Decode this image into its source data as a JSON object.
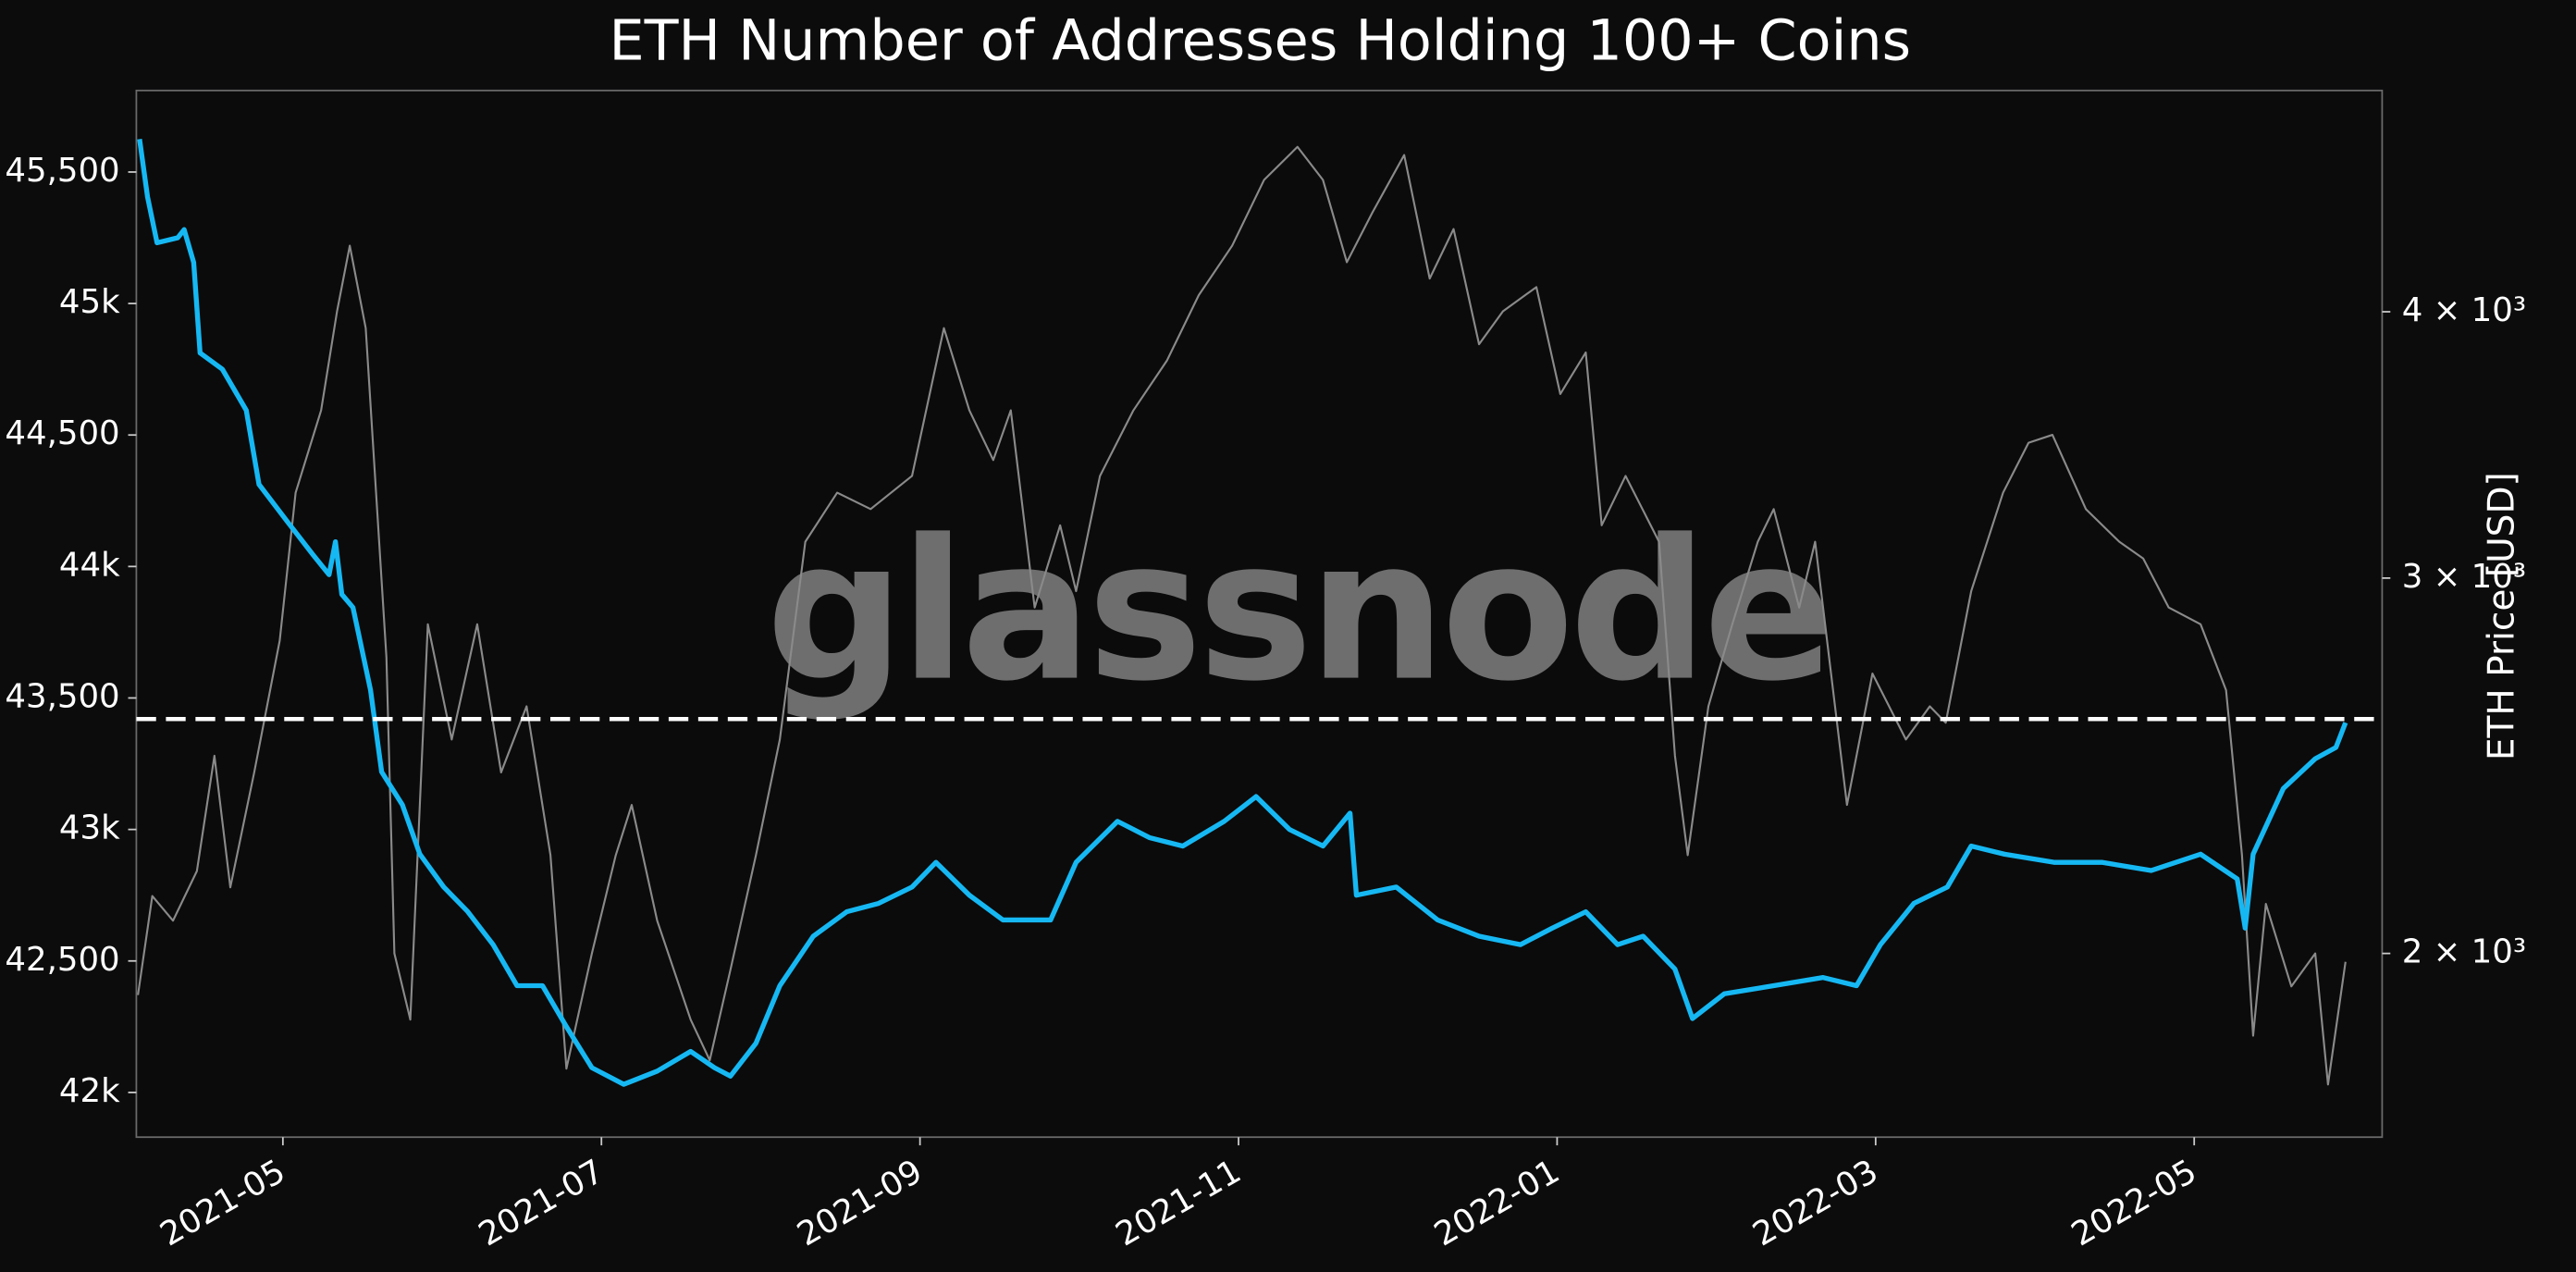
{
  "chart_data": {
    "type": "line",
    "title": "ETH Number of Addresses Holding 100+ Coins",
    "y2_label": "ETH Price [USD]",
    "watermark": "glassnode",
    "xlim": [
      0.08,
      14.18
    ],
    "xticks": [
      {
        "value": 1,
        "label": "2021-05"
      },
      {
        "value": 3,
        "label": "2021-07"
      },
      {
        "value": 5,
        "label": "2021-09"
      },
      {
        "value": 7,
        "label": "2021-11"
      },
      {
        "value": 9,
        "label": "2022-01"
      },
      {
        "value": 11,
        "label": "2022-03"
      },
      {
        "value": 13,
        "label": "2022-05"
      }
    ],
    "ylim": [
      41830,
      45810
    ],
    "yticks": [
      {
        "value": 42000,
        "label": "42k"
      },
      {
        "value": 42500,
        "label": "42,500"
      },
      {
        "value": 43000,
        "label": "43k"
      },
      {
        "value": 43500,
        "label": "43,500"
      },
      {
        "value": 44000,
        "label": "44k"
      },
      {
        "value": 44500,
        "label": "44,500"
      },
      {
        "value": 45000,
        "label": "45k"
      },
      {
        "value": 45500,
        "label": "45,500"
      }
    ],
    "y2lim": [
      1640,
      5080
    ],
    "y2_log": true,
    "y2ticks": [
      {
        "value": 2000,
        "label": "2 × 10³"
      },
      {
        "value": 3000,
        "label": "3 × 10³"
      },
      {
        "value": 4000,
        "label": "4 × 10³"
      }
    ],
    "hline": 43420,
    "series": [
      {
        "color": "#8a8a8a",
        "axis": "y2",
        "x": [
          0.09,
          0.18,
          0.31,
          0.46,
          0.57,
          0.67,
          0.82,
          0.98,
          1.08,
          1.24,
          1.34,
          1.42,
          1.52,
          1.65,
          1.7,
          1.8,
          1.91,
          2.06,
          2.22,
          2.37,
          2.53,
          2.68,
          2.78,
          2.94,
          3.09,
          3.19,
          3.35,
          3.56,
          3.68,
          3.81,
          3.97,
          4.12,
          4.28,
          4.48,
          4.69,
          4.95,
          5.15,
          5.31,
          5.46,
          5.57,
          5.72,
          5.88,
          5.98,
          6.13,
          6.34,
          6.55,
          6.75,
          6.96,
          7.16,
          7.37,
          7.53,
          7.68,
          7.84,
          8.04,
          8.2,
          8.35,
          8.51,
          8.66,
          8.87,
          9.02,
          9.18,
          9.28,
          9.43,
          9.64,
          9.74,
          9.82,
          9.95,
          10.1,
          10.26,
          10.36,
          10.52,
          10.62,
          10.72,
          10.82,
          10.98,
          11.19,
          11.34,
          11.44,
          11.6,
          11.8,
          11.96,
          12.11,
          12.32,
          12.53,
          12.68,
          12.84,
          13.04,
          13.2,
          13.3,
          13.37,
          13.45,
          13.61,
          13.76,
          13.84,
          13.95
        ],
        "values": [
          1912,
          2128,
          2072,
          2186,
          2476,
          2148,
          2432,
          2804,
          3290,
          3596,
          4002,
          4296,
          3930,
          2754,
          2000,
          1862,
          2854,
          2520,
          2854,
          2432,
          2612,
          2224,
          1766,
          2000,
          2224,
          2348,
          2072,
          1862,
          1782,
          1965,
          2224,
          2520,
          3120,
          3290,
          3232,
          3350,
          3930,
          3596,
          3408,
          3596,
          2906,
          3176,
          2958,
          3350,
          3596,
          3794,
          4072,
          4296,
          4612,
          4780,
          4612,
          4220,
          4452,
          4738,
          4146,
          4374,
          3862,
          4002,
          4108,
          3660,
          3828,
          3176,
          3350,
          3120,
          2476,
          2224,
          2612,
          2854,
          3120,
          3232,
          2906,
          3120,
          2706,
          2348,
          2706,
          2520,
          2612,
          2566,
          2958,
          3290,
          3472,
          3502,
          3232,
          3120,
          3064,
          2906,
          2854,
          2658,
          2224,
          1830,
          2110,
          1930,
          2000,
          1736,
          1982
        ]
      },
      {
        "color": "#16b8f3",
        "axis": "y",
        "x": [
          0.1,
          0.15,
          0.21,
          0.34,
          0.38,
          0.44,
          0.48,
          0.62,
          0.77,
          0.85,
          1.03,
          1.19,
          1.29,
          1.33,
          1.37,
          1.44,
          1.55,
          1.62,
          1.75,
          1.86,
          2.01,
          2.16,
          2.32,
          2.47,
          2.63,
          2.78,
          2.94,
          3.14,
          3.35,
          3.56,
          3.71,
          3.81,
          3.97,
          4.12,
          4.33,
          4.54,
          4.74,
          4.95,
          5.1,
          5.31,
          5.52,
          5.82,
          5.98,
          6.24,
          6.44,
          6.65,
          6.91,
          7.11,
          7.32,
          7.53,
          7.7,
          7.74,
          7.99,
          8.25,
          8.51,
          8.77,
          8.97,
          9.18,
          9.38,
          9.54,
          9.74,
          9.85,
          10.05,
          10.36,
          10.67,
          10.88,
          11.03,
          11.24,
          11.45,
          11.6,
          11.81,
          12.12,
          12.42,
          12.73,
          13.04,
          13.27,
          13.32,
          13.37,
          13.56,
          13.76,
          13.89,
          13.95
        ],
        "values": [
          45625,
          45406,
          45231,
          45250,
          45281,
          45156,
          44812,
          44750,
          44594,
          44312,
          44169,
          44044,
          43969,
          44094,
          43894,
          43844,
          43531,
          43219,
          43094,
          42906,
          42781,
          42688,
          42562,
          42406,
          42406,
          42250,
          42094,
          42031,
          42081,
          42156,
          42094,
          42062,
          42187,
          42406,
          42594,
          42687,
          42719,
          42781,
          42875,
          42750,
          42656,
          42656,
          42875,
          43031,
          42969,
          42937,
          43031,
          43125,
          43000,
          42937,
          43062,
          42750,
          42781,
          42656,
          42594,
          42562,
          42625,
          42687,
          42562,
          42594,
          42469,
          42281,
          42375,
          42406,
          42437,
          42406,
          42562,
          42719,
          42781,
          42937,
          42906,
          42875,
          42875,
          42844,
          42906,
          42812,
          42625,
          42906,
          43156,
          43269,
          43312,
          43406
        ]
      }
    ]
  }
}
